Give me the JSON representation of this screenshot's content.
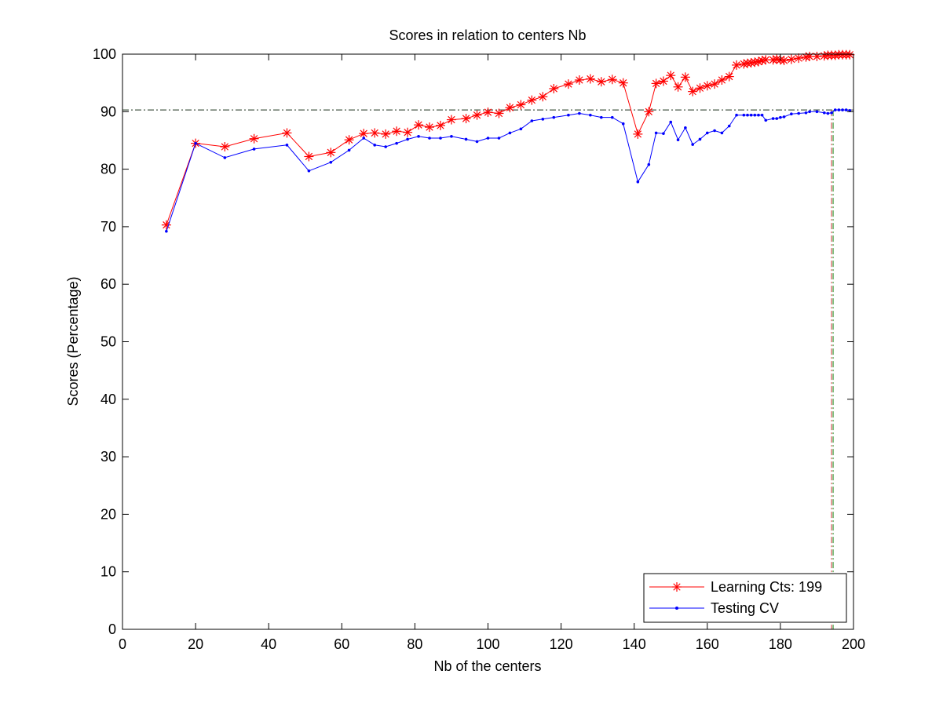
{
  "chart_data": {
    "type": "line",
    "title": "Scores in relation to centers Nb",
    "xlabel": "Nb of the centers",
    "ylabel": "Scores (Percentage)",
    "xlim": [
      0,
      200
    ],
    "ylim": [
      0,
      100
    ],
    "xticks": [
      "0",
      "20",
      "40",
      "60",
      "80",
      "100",
      "120",
      "140",
      "160",
      "180",
      "200"
    ],
    "yticks": [
      "0",
      "10",
      "20",
      "30",
      "40",
      "50",
      "60",
      "70",
      "80",
      "90",
      "100"
    ],
    "grid": false,
    "legend_position": "bottom-right",
    "reference_lines": {
      "horizontal_y": 90.3,
      "vertical_x": 194
    },
    "series": [
      {
        "name": "Learning Cts: 199",
        "color": "#ff0000",
        "marker": "asterisk",
        "x": [
          12,
          20,
          28,
          36,
          45,
          51,
          57,
          62,
          66,
          69,
          72,
          75,
          78,
          81,
          84,
          87,
          90,
          94,
          97,
          100,
          103,
          106,
          109,
          112,
          115,
          118,
          122,
          125,
          128,
          131,
          134,
          137,
          141,
          144,
          146,
          148,
          150,
          152,
          154,
          156,
          158,
          160,
          162,
          164,
          166,
          168,
          170,
          171,
          172,
          173,
          174,
          175,
          176,
          178,
          179,
          180,
          181,
          183,
          185,
          187,
          188,
          190,
          192,
          193,
          194,
          195,
          196,
          197,
          198,
          199
        ],
        "y": [
          70.3,
          84.5,
          83.9,
          85.3,
          86.3,
          82.2,
          82.9,
          85.1,
          86.2,
          86.3,
          86.1,
          86.6,
          86.4,
          87.7,
          87.3,
          87.6,
          88.6,
          88.8,
          89.4,
          89.9,
          89.7,
          90.7,
          91.2,
          92.0,
          92.6,
          94.0,
          94.8,
          95.5,
          95.7,
          95.2,
          95.6,
          95.0,
          86.1,
          90.0,
          94.9,
          95.3,
          96.3,
          94.3,
          96.0,
          93.5,
          94.1,
          94.5,
          94.8,
          95.5,
          96.1,
          98.1,
          98.3,
          98.4,
          98.5,
          98.6,
          98.7,
          98.9,
          99.0,
          99.0,
          99.1,
          99.0,
          98.9,
          99.1,
          99.3,
          99.5,
          99.6,
          99.6,
          99.7,
          99.8,
          99.8,
          99.8,
          99.9,
          99.9,
          99.9,
          99.9
        ]
      },
      {
        "name": "Testing CV",
        "color": "#0000ff",
        "marker": "dot",
        "x": [
          12,
          20,
          28,
          36,
          45,
          51,
          57,
          62,
          66,
          69,
          72,
          75,
          78,
          81,
          84,
          87,
          90,
          94,
          97,
          100,
          103,
          106,
          109,
          112,
          115,
          118,
          122,
          125,
          128,
          131,
          134,
          137,
          141,
          144,
          146,
          148,
          150,
          152,
          154,
          156,
          158,
          160,
          162,
          164,
          166,
          168,
          170,
          171,
          172,
          173,
          174,
          175,
          176,
          178,
          179,
          180,
          181,
          183,
          185,
          187,
          188,
          190,
          192,
          193,
          194,
          195,
          196,
          197,
          198,
          199
        ],
        "y": [
          69.2,
          84.5,
          82.0,
          83.5,
          84.2,
          79.7,
          81.2,
          83.3,
          85.4,
          84.2,
          83.9,
          84.5,
          85.2,
          85.7,
          85.4,
          85.4,
          85.7,
          85.2,
          84.8,
          85.4,
          85.4,
          86.3,
          87.0,
          88.4,
          88.7,
          89.0,
          89.4,
          89.7,
          89.4,
          89.0,
          89.0,
          87.9,
          77.8,
          80.8,
          86.3,
          86.2,
          88.2,
          85.1,
          87.2,
          84.3,
          85.2,
          86.3,
          86.7,
          86.3,
          87.5,
          89.4,
          89.4,
          89.4,
          89.4,
          89.4,
          89.4,
          89.4,
          88.5,
          88.8,
          88.8,
          89.0,
          89.1,
          89.6,
          89.7,
          89.8,
          90.0,
          90.0,
          89.8,
          89.7,
          89.8,
          90.3,
          90.3,
          90.3,
          90.3,
          90.2
        ]
      }
    ]
  }
}
